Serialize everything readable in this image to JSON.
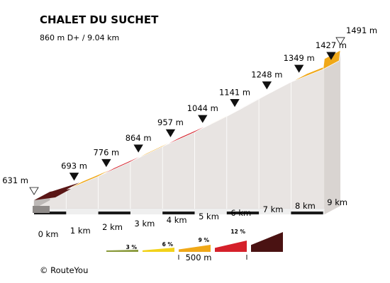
{
  "chart_data": {
    "type": "area",
    "title": "CHALET DU SUCHET",
    "subtitle": "860 m D+ / 9.04 km",
    "x_km": [
      0,
      1,
      2,
      3,
      4,
      5,
      6,
      7,
      8,
      9
    ],
    "x_labels": [
      "0 km",
      "1 km",
      "2 km",
      "3 km",
      "4 km",
      "5 km",
      "6 km",
      "7 km",
      "8 km",
      "9 km"
    ],
    "elevation_m": [
      631,
      693,
      776,
      864,
      957,
      1044,
      1141,
      1248,
      1349,
      1427,
      1491
    ],
    "elevation_labels": [
      "631 m",
      "693 m",
      "776 m",
      "864 m",
      "957 m",
      "1044 m",
      "1141 m",
      "1248 m",
      "1349 m",
      "1427 m",
      "1491 m"
    ],
    "total_km": 9.04,
    "gradient_legend": [
      {
        "label": "",
        "color": "#8a9a3c"
      },
      {
        "label": "3 %",
        "color": "#f2d21a"
      },
      {
        "label": "6 %",
        "color": "#f0a818"
      },
      {
        "label": "9 %",
        "color": "#d5202a"
      },
      {
        "label": "12 %",
        "color": "#4a1212"
      }
    ],
    "scale_label": "500 m",
    "credit": "© RouteYou"
  }
}
